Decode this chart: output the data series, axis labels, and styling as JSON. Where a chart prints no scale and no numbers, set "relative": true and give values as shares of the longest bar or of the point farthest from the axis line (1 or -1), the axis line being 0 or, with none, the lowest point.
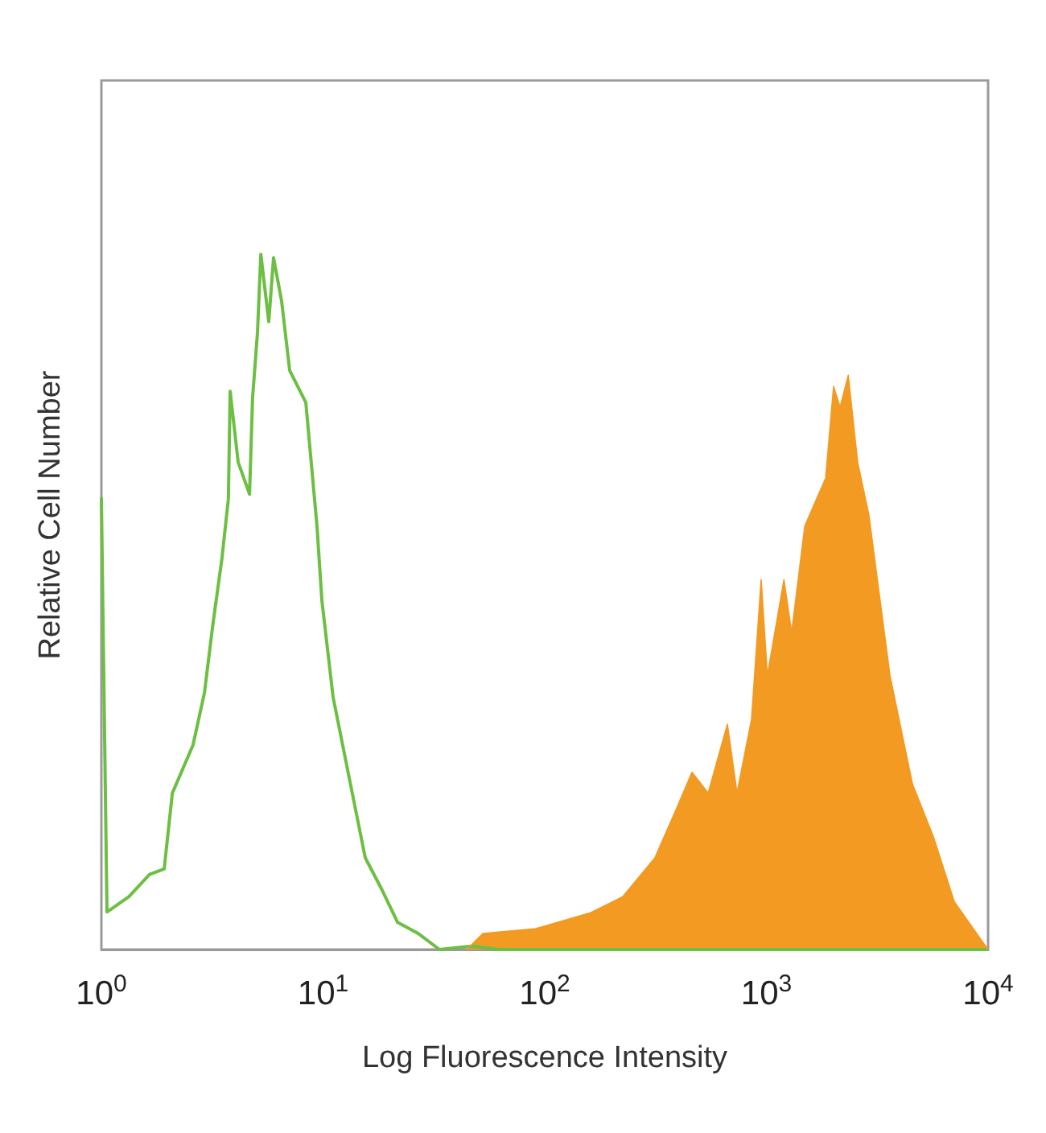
{
  "chart_data": {
    "type": "line",
    "relative": true,
    "xlabel": "Log Fluorescence Intensity",
    "ylabel": "Relative Cell Number",
    "log": "x",
    "xlim": [
      1,
      10000
    ],
    "xticks": [
      {
        "value": 1,
        "label": "10$^{0}$"
      },
      {
        "value": 10,
        "label": "10$^{1}$"
      },
      {
        "value": 100,
        "label": "10$^{2}$"
      },
      {
        "value": 1000,
        "label": "10$^{3}$"
      },
      {
        "value": 10000,
        "label": "10$^{4}$"
      }
    ],
    "marker": "none",
    "line_style": "solid",
    "series": [
      {
        "color": "#6cbf43",
        "x": [
          1,
          1.06,
          1.33,
          1.65,
          1.92,
          2.09,
          2.59,
          2.92,
          3.17,
          3.5,
          3.74,
          3.81,
          4.14,
          4.66,
          4.81,
          5.06,
          5.24,
          5.69,
          5.98,
          6.5,
          7.07,
          8.36,
          9.39,
          9.88,
          11.1,
          13.1,
          15.5,
          18.3,
          21.7,
          26.9,
          33.5,
          46.8,
          62.2,
          10000
        ],
        "values": [
          0.65,
          0.054,
          0.076,
          0.108,
          0.116,
          0.225,
          0.294,
          0.37,
          0.463,
          0.563,
          0.648,
          0.803,
          0.701,
          0.655,
          0.794,
          0.887,
          1,
          0.903,
          0.995,
          0.933,
          0.833,
          0.787,
          0.609,
          0.502,
          0.363,
          0.248,
          0.132,
          0.088,
          0.039,
          0.023,
          0,
          0.005,
          0,
          0
        ]
      },
      {
        "type": "area",
        "color": "#f39a22",
        "x": [
          44.5,
          52.6,
          91.2,
          161,
          225,
          314,
          391,
          462,
          546,
          667,
          737,
          857,
          947,
          1010,
          1200,
          1300,
          1490,
          1850,
          2010,
          2150,
          2340,
          2580,
          2900,
          3610,
          4560,
          5670,
          7040,
          8890,
          10000
        ],
        "values": [
          0,
          0.023,
          0.03,
          0.053,
          0.076,
          0.132,
          0.201,
          0.255,
          0.225,
          0.324,
          0.225,
          0.331,
          0.532,
          0.394,
          0.532,
          0.456,
          0.609,
          0.678,
          0.81,
          0.78,
          0.826,
          0.701,
          0.625,
          0.394,
          0.238,
          0.162,
          0.069,
          0.023,
          0
        ]
      }
    ]
  }
}
